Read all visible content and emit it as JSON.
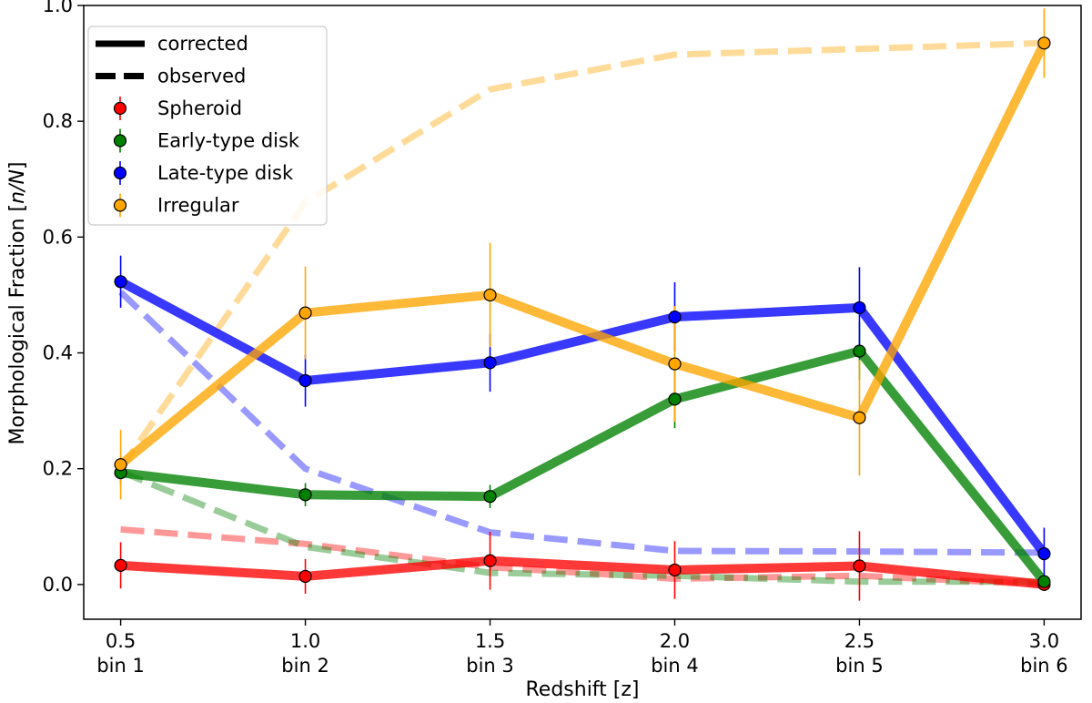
{
  "chart_data": {
    "type": "line",
    "title": "",
    "xlabel": "Redshift [z]",
    "ylabel_parts": [
      "Morphological Fraction [",
      "n/N",
      "]"
    ],
    "x": [
      0.5,
      1.0,
      1.5,
      2.0,
      2.5,
      3.0
    ],
    "x_tick_labels": [
      "0.5",
      "1.0",
      "1.5",
      "2.0",
      "2.5",
      "3.0"
    ],
    "x_bin_labels": [
      "bin 1",
      "bin 2",
      "bin 3",
      "bin 4",
      "bin 5",
      "bin 6"
    ],
    "xlim": [
      0.4,
      3.1
    ],
    "ylim": [
      -0.06,
      1.0
    ],
    "y_ticks": [
      0.0,
      0.2,
      0.4,
      0.6,
      0.8,
      1.0
    ],
    "y_tick_labels": [
      "0.0",
      "0.2",
      "0.4",
      "0.6",
      "0.8",
      "1.0"
    ],
    "legend": {
      "placement": "top-left",
      "line_entries": [
        {
          "label": "corrected",
          "style": "solid"
        },
        {
          "label": "observed",
          "style": "dashed"
        }
      ],
      "marker_entries": [
        {
          "label": "Spheroid",
          "color": "#ff0000"
        },
        {
          "label": "Early-type disk",
          "color": "#008000"
        },
        {
          "label": "Late-type disk",
          "color": "#0000ff"
        },
        {
          "label": "Irregular",
          "color": "#ffa500"
        }
      ]
    },
    "series": [
      {
        "name": "Spheroid",
        "color": "#ff0000",
        "corrected": [
          0.033,
          0.014,
          0.041,
          0.025,
          0.032,
          0.0
        ],
        "corrected_err": [
          0.04,
          0.03,
          0.05,
          0.05,
          0.06,
          0.005
        ],
        "observed": [
          0.095,
          0.07,
          0.03,
          0.01,
          0.015,
          0.0
        ]
      },
      {
        "name": "Early-type disk",
        "color": "#008000",
        "corrected": [
          0.193,
          0.155,
          0.152,
          0.32,
          0.403,
          0.005
        ],
        "corrected_err": [
          0.02,
          0.02,
          0.02,
          0.05,
          0.05,
          0.005
        ],
        "observed": [
          0.195,
          0.065,
          0.02,
          0.015,
          0.005,
          0.005
        ]
      },
      {
        "name": "Late-type disk",
        "color": "#0000ff",
        "corrected": [
          0.523,
          0.352,
          0.383,
          0.462,
          0.478,
          0.053
        ],
        "corrected_err": [
          0.045,
          0.045,
          0.05,
          0.06,
          0.07,
          0.045
        ],
        "observed": [
          0.505,
          0.2,
          0.09,
          0.058,
          0.057,
          0.055
        ]
      },
      {
        "name": "Irregular",
        "color": "#ffa500",
        "corrected": [
          0.207,
          0.469,
          0.5,
          0.381,
          0.288,
          0.935
        ],
        "corrected_err": [
          0.06,
          0.08,
          0.09,
          0.1,
          0.1,
          0.06
        ],
        "observed": [
          0.2,
          0.66,
          0.855,
          0.915,
          0.925,
          0.935
        ]
      }
    ]
  }
}
